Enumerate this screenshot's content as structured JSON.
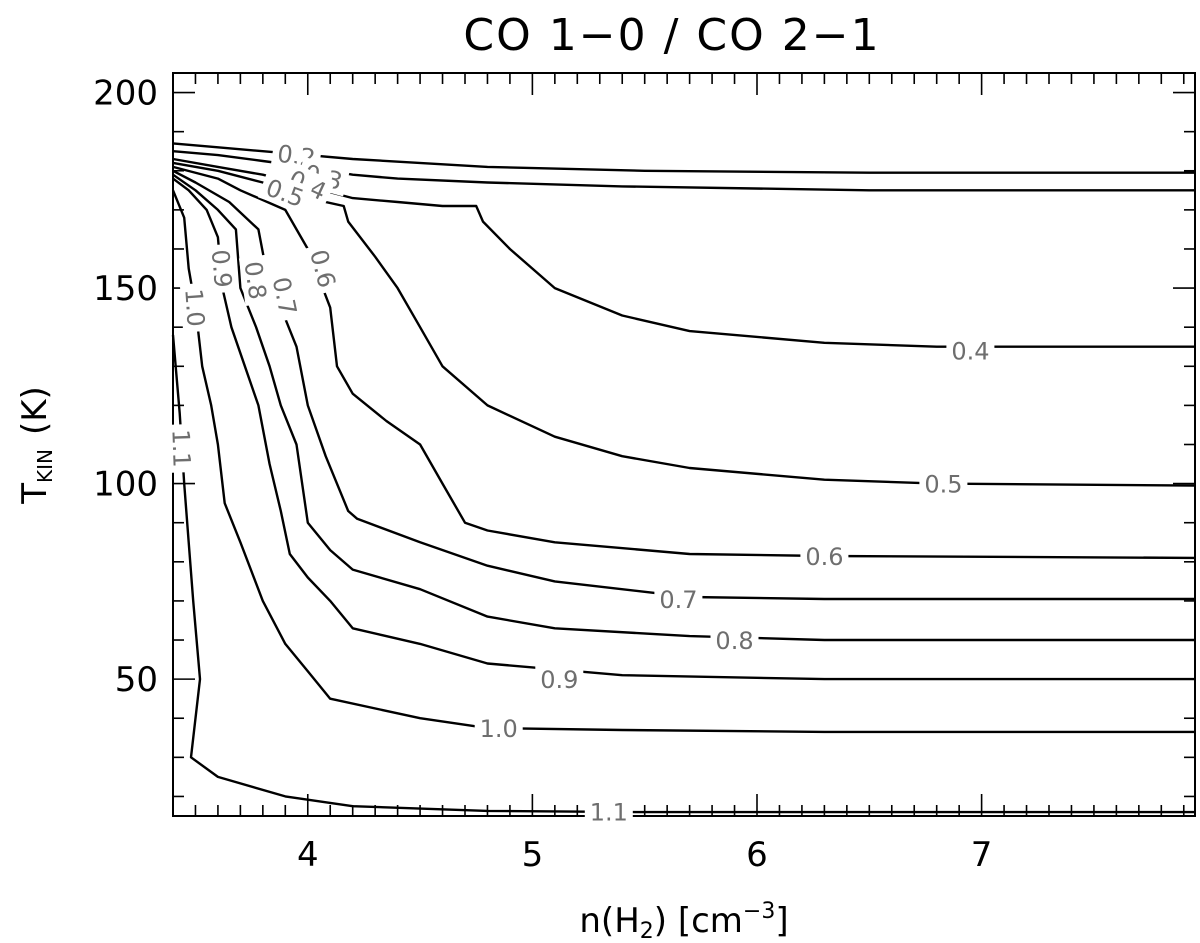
{
  "chart_data": {
    "type": "contour",
    "title": "CO 1−0 / CO 2−1",
    "xlabel": "n(H",
    "xlabel_sub": "2",
    "xlabel_unit_pre": ") [cm",
    "xlabel_unit_sup": "−3",
    "xlabel_unit_post": "]",
    "ylabel_main": "T",
    "ylabel_sub": "KIN",
    "ylabel_unit": "(K)",
    "xlim": [
      3.4,
      7.95
    ],
    "ylim": [
      15,
      205
    ],
    "xticks": [
      4,
      5,
      6,
      7
    ],
    "xtick_labels": [
      "4",
      "5",
      "6",
      "7"
    ],
    "yticks": [
      50,
      100,
      150,
      200
    ],
    "ytick_labels": [
      "50",
      "100",
      "150",
      "200"
    ],
    "grid": false,
    "contours": [
      {
        "level_label": "0.2",
        "points": [
          [
            3.4,
            187
          ],
          [
            3.6,
            186
          ],
          [
            3.8,
            185
          ],
          [
            4.0,
            184
          ],
          [
            4.2,
            183
          ],
          [
            4.8,
            181
          ],
          [
            5.5,
            180
          ],
          [
            6.5,
            179.5
          ],
          [
            7.95,
            179.5
          ]
        ]
      },
      {
        "level_label": "0.3",
        "points": [
          [
            3.4,
            185
          ],
          [
            3.6,
            184
          ],
          [
            3.8,
            182.5
          ],
          [
            4.0,
            181
          ],
          [
            4.2,
            179
          ],
          [
            4.4,
            178
          ],
          [
            4.8,
            177
          ],
          [
            5.4,
            176
          ],
          [
            6.5,
            175
          ],
          [
            7.95,
            175
          ]
        ]
      },
      {
        "level_label": "0.4",
        "points": [
          [
            3.4,
            183
          ],
          [
            3.6,
            181
          ],
          [
            3.8,
            179
          ],
          [
            4.0,
            176
          ],
          [
            4.2,
            173
          ],
          [
            4.4,
            172
          ],
          [
            4.6,
            171
          ],
          [
            4.75,
            171
          ],
          [
            4.78,
            167
          ],
          [
            4.9,
            160
          ],
          [
            5.1,
            150
          ],
          [
            5.4,
            143
          ],
          [
            5.7,
            139
          ],
          [
            6.3,
            136
          ],
          [
            6.8,
            135
          ],
          [
            7.95,
            135
          ]
        ]
      },
      {
        "level_label": "0.5",
        "points": [
          [
            3.4,
            182
          ],
          [
            3.6,
            180
          ],
          [
            3.8,
            177
          ],
          [
            4.0,
            173
          ],
          [
            4.16,
            171
          ],
          [
            4.18,
            167
          ],
          [
            4.3,
            158
          ],
          [
            4.4,
            150
          ],
          [
            4.5,
            140
          ],
          [
            4.6,
            130
          ],
          [
            4.8,
            120
          ],
          [
            5.1,
            112
          ],
          [
            5.4,
            107
          ],
          [
            5.7,
            104
          ],
          [
            6.3,
            101
          ],
          [
            6.8,
            100
          ],
          [
            7.95,
            99.5
          ]
        ]
      },
      {
        "level_label": "0.6",
        "points": [
          [
            3.4,
            181
          ],
          [
            3.6,
            178
          ],
          [
            3.7,
            175
          ],
          [
            3.9,
            170
          ],
          [
            4.0,
            160
          ],
          [
            4.1,
            145
          ],
          [
            4.13,
            130
          ],
          [
            4.2,
            123
          ],
          [
            4.35,
            116
          ],
          [
            4.5,
            110
          ],
          [
            4.6,
            100
          ],
          [
            4.7,
            90
          ],
          [
            4.8,
            88
          ],
          [
            5.1,
            85
          ],
          [
            5.7,
            82
          ],
          [
            6.3,
            81.5
          ],
          [
            7.95,
            81
          ]
        ]
      },
      {
        "level_label": "0.7",
        "points": [
          [
            3.4,
            180
          ],
          [
            3.5,
            177
          ],
          [
            3.65,
            172
          ],
          [
            3.78,
            165
          ],
          [
            3.83,
            150
          ],
          [
            3.88,
            145
          ],
          [
            3.95,
            135
          ],
          [
            4.0,
            120
          ],
          [
            4.08,
            107
          ],
          [
            4.18,
            93
          ],
          [
            4.22,
            91
          ],
          [
            4.5,
            85
          ],
          [
            4.8,
            79
          ],
          [
            5.1,
            75
          ],
          [
            5.7,
            71
          ],
          [
            6.3,
            70.5
          ],
          [
            7.95,
            70.5
          ]
        ]
      },
      {
        "level_label": "0.8",
        "points": [
          [
            3.4,
            179
          ],
          [
            3.5,
            175
          ],
          [
            3.6,
            170
          ],
          [
            3.68,
            165
          ],
          [
            3.7,
            150
          ],
          [
            3.77,
            140
          ],
          [
            3.83,
            130
          ],
          [
            3.88,
            120
          ],
          [
            3.95,
            110
          ],
          [
            4.0,
            90
          ],
          [
            4.1,
            83
          ],
          [
            4.2,
            78
          ],
          [
            4.5,
            73
          ],
          [
            4.8,
            66
          ],
          [
            5.1,
            63
          ],
          [
            5.7,
            61
          ],
          [
            6.3,
            60
          ],
          [
            7.95,
            60
          ]
        ]
      },
      {
        "level_label": "0.9",
        "points": [
          [
            3.4,
            178
          ],
          [
            3.47,
            175
          ],
          [
            3.55,
            170
          ],
          [
            3.6,
            163
          ],
          [
            3.62,
            150
          ],
          [
            3.66,
            140
          ],
          [
            3.72,
            130
          ],
          [
            3.78,
            120
          ],
          [
            3.83,
            105
          ],
          [
            3.88,
            93
          ],
          [
            3.92,
            82
          ],
          [
            4.0,
            76
          ],
          [
            4.1,
            70
          ],
          [
            4.2,
            63
          ],
          [
            4.5,
            59
          ],
          [
            4.8,
            54
          ],
          [
            5.4,
            51
          ],
          [
            6.3,
            50
          ],
          [
            7.95,
            50
          ]
        ]
      },
      {
        "level_label": "1.0",
        "points": [
          [
            3.4,
            175
          ],
          [
            3.45,
            168
          ],
          [
            3.47,
            155
          ],
          [
            3.5,
            145
          ],
          [
            3.53,
            130
          ],
          [
            3.57,
            120
          ],
          [
            3.6,
            110
          ],
          [
            3.63,
            95
          ],
          [
            3.7,
            85
          ],
          [
            3.8,
            70
          ],
          [
            3.9,
            59
          ],
          [
            4.0,
            52
          ],
          [
            4.1,
            45
          ],
          [
            4.5,
            40
          ],
          [
            4.8,
            37.5
          ],
          [
            5.4,
            37
          ],
          [
            6.3,
            36.5
          ],
          [
            7.95,
            36.5
          ]
        ]
      },
      {
        "level_label": "1.1",
        "points": [
          [
            3.4,
            138
          ],
          [
            3.43,
            118
          ],
          [
            3.45,
            100
          ],
          [
            3.47,
            85
          ],
          [
            3.49,
            70
          ],
          [
            3.52,
            50
          ],
          [
            3.48,
            30
          ],
          [
            3.6,
            25
          ],
          [
            3.9,
            20
          ],
          [
            4.2,
            17.5
          ],
          [
            4.8,
            16.3
          ],
          [
            5.5,
            16
          ],
          [
            6.5,
            16
          ],
          [
            7.95,
            16
          ]
        ]
      }
    ],
    "labels": [
      {
        "text": "0.2",
        "x": 3.95,
        "y": 184,
        "angle": 8
      },
      {
        "text": "0.3",
        "x": 4.07,
        "y": 178.5,
        "angle": 15
      },
      {
        "text": "0.4",
        "x": 4.0,
        "y": 176.5,
        "angle": 25
      },
      {
        "text": "0.5",
        "x": 3.9,
        "y": 174.5,
        "angle": 20
      },
      {
        "text": "0.6",
        "x": 4.07,
        "y": 155,
        "angle": 75
      },
      {
        "text": "0.7",
        "x": 3.9,
        "y": 148,
        "angle": 78
      },
      {
        "text": "0.8",
        "x": 3.77,
        "y": 152,
        "angle": 82
      },
      {
        "text": "0.9",
        "x": 3.62,
        "y": 155,
        "angle": 85
      },
      {
        "text": "1.0",
        "x": 3.5,
        "y": 145,
        "angle": 86
      },
      {
        "text": "1.1",
        "x": 3.44,
        "y": 109,
        "angle": 88
      },
      {
        "text": "0.4",
        "x": 6.95,
        "y": 134,
        "angle": 0
      },
      {
        "text": "0.5",
        "x": 6.83,
        "y": 100,
        "angle": 0
      },
      {
        "text": "0.6",
        "x": 6.3,
        "y": 81.5,
        "angle": 0
      },
      {
        "text": "0.7",
        "x": 5.65,
        "y": 70.5,
        "angle": 0
      },
      {
        "text": "0.8",
        "x": 5.9,
        "y": 60,
        "angle": 0
      },
      {
        "text": "0.9",
        "x": 5.12,
        "y": 50,
        "angle": 0
      },
      {
        "text": "1.0",
        "x": 4.85,
        "y": 37.5,
        "angle": 0
      },
      {
        "text": "1.1",
        "x": 5.34,
        "y": 16.2,
        "angle": 0
      }
    ]
  }
}
